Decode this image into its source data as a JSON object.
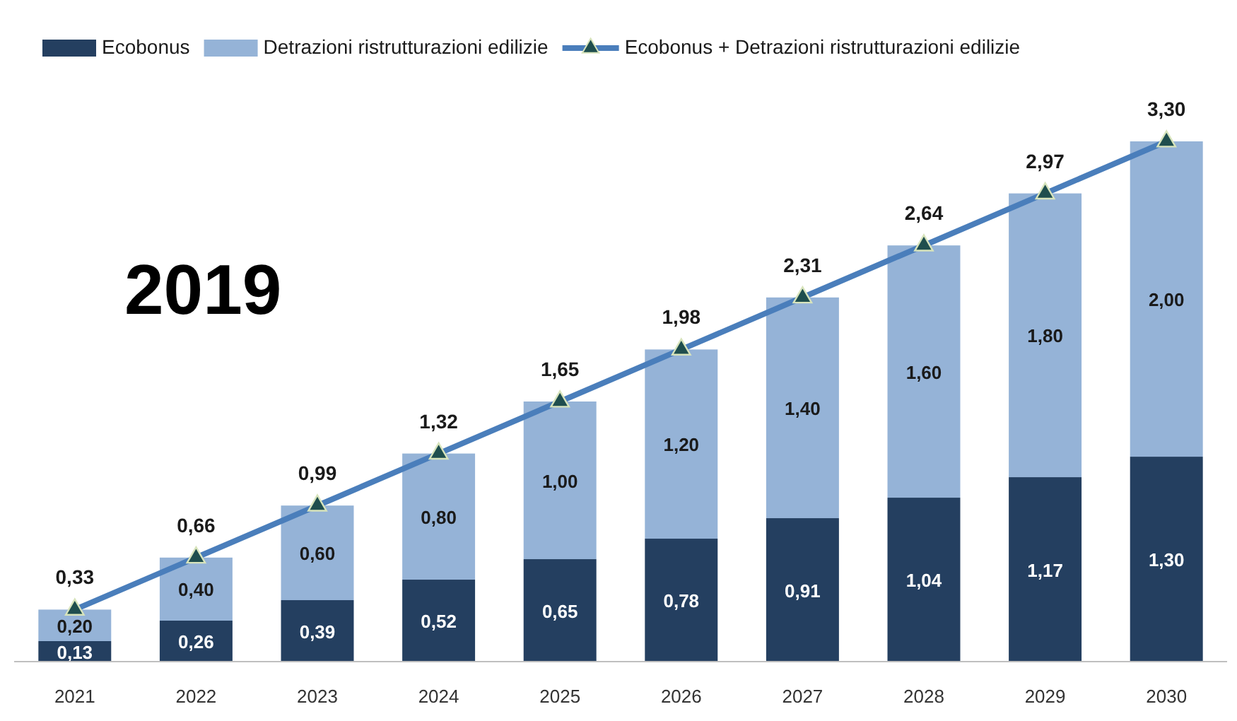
{
  "chart_data": {
    "type": "bar",
    "stacked": true,
    "legend": "top",
    "categories": [
      "2021",
      "2022",
      "2023",
      "2024",
      "2025",
      "2026",
      "2027",
      "2028",
      "2029",
      "2030"
    ],
    "series": [
      {
        "name": "Ecobonus",
        "color": "#243f60",
        "values": [
          0.13,
          0.26,
          0.39,
          0.52,
          0.65,
          0.78,
          0.91,
          1.04,
          1.17,
          1.3
        ],
        "value_labels": [
          "0,13",
          "0,26",
          "0,39",
          "0,52",
          "0,65",
          "0,78",
          "0,91",
          "1,04",
          "1,17",
          "1,30"
        ]
      },
      {
        "name": "Detrazioni ristrutturazioni edilizie",
        "color": "#95b3d7",
        "values": [
          0.2,
          0.4,
          0.6,
          0.8,
          1.0,
          1.2,
          1.4,
          1.6,
          1.8,
          2.0
        ],
        "value_labels": [
          "0,20",
          "0,40",
          "0,60",
          "0,80",
          "1,00",
          "1,20",
          "1,40",
          "1,60",
          "1,80",
          "2,00"
        ]
      },
      {
        "name": "Ecobonus + Detrazioni ristrutturazioni edilizie",
        "type": "line",
        "color": "#4a7ebb",
        "marker": "triangle",
        "values": [
          0.33,
          0.66,
          0.99,
          1.32,
          1.65,
          1.98,
          2.31,
          2.64,
          2.97,
          3.3
        ],
        "value_labels": [
          "0,33",
          "0,66",
          "0,99",
          "1,32",
          "1,65",
          "1,98",
          "2,31",
          "2,64",
          "2,97",
          "3,30"
        ]
      }
    ],
    "annotations": [
      "2019"
    ]
  }
}
